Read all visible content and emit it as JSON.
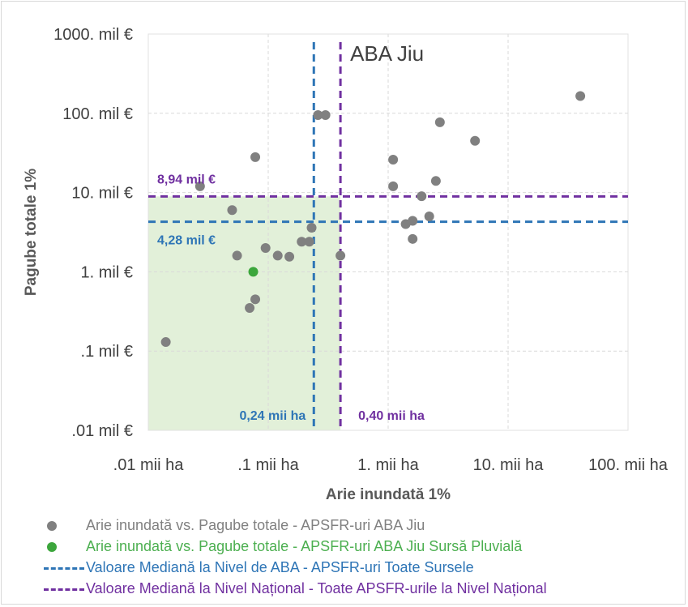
{
  "chart_data": {
    "type": "scatter",
    "title": "ABA Jiu",
    "xlabel": "Arie inundată 1%",
    "ylabel": "Pagube totale 1%",
    "x_scale": "log",
    "y_scale": "log",
    "xlim": [
      0.01,
      100
    ],
    "ylim": [
      0.01,
      1000
    ],
    "grid": true,
    "x_ticks": [
      {
        "value": 0.01,
        "label": ".01 mii ha"
      },
      {
        "value": 0.1,
        "label": ".1 mii ha"
      },
      {
        "value": 1,
        "label": "1. mii ha"
      },
      {
        "value": 10,
        "label": "10. mii ha"
      },
      {
        "value": 100,
        "label": "100. mii ha"
      }
    ],
    "y_ticks": [
      {
        "value": 1000,
        "label": "1000. mil €"
      },
      {
        "value": 100,
        "label": "100. mil €"
      },
      {
        "value": 10,
        "label": "10. mil €"
      },
      {
        "value": 1,
        "label": "1. mil €"
      },
      {
        "value": 0.1,
        "label": ".1 mil €"
      },
      {
        "value": 0.01,
        "label": ".01 mil €"
      }
    ],
    "series": [
      {
        "name": "Arie inundată vs. Pagube totale - APSFR-uri ABA Jiu",
        "color": "#808080",
        "points": [
          [
            0.014,
            0.13
          ],
          [
            0.027,
            12
          ],
          [
            0.05,
            6
          ],
          [
            0.055,
            1.6
          ],
          [
            0.07,
            0.35
          ],
          [
            0.078,
            28
          ],
          [
            0.078,
            0.45
          ],
          [
            0.095,
            2.0
          ],
          [
            0.12,
            1.6
          ],
          [
            0.15,
            1.55
          ],
          [
            0.19,
            2.4
          ],
          [
            0.22,
            2.4
          ],
          [
            0.23,
            3.6
          ],
          [
            0.26,
            95
          ],
          [
            0.3,
            95
          ],
          [
            0.4,
            1.6
          ],
          [
            1.1,
            26
          ],
          [
            1.1,
            12
          ],
          [
            1.4,
            4.0
          ],
          [
            1.6,
            4.4
          ],
          [
            1.6,
            2.6
          ],
          [
            1.9,
            9
          ],
          [
            2.2,
            5
          ],
          [
            2.5,
            14
          ],
          [
            2.7,
            77
          ],
          [
            5.3,
            45
          ],
          [
            40,
            165
          ]
        ]
      },
      {
        "name": "Arie inundată vs. Pagube totale - APSFR-uri ABA Jiu Sursă Pluvială",
        "color": "#3ca63c",
        "points": [
          [
            0.075,
            1.0
          ]
        ]
      }
    ],
    "reference_lines": [
      {
        "name": "Valoare Mediană la Nivel de ABA - APSFR-uri Toate Sursele",
        "color": "#2e75b6",
        "x": 0.24,
        "y": 4.28,
        "x_label": "0,24 mii ha",
        "y_label": "4,28 mil €"
      },
      {
        "name": "Valoare Mediană la Nivel Național - Toate APSFR-urile la Nivel Național",
        "color": "#7030a0",
        "x": 0.4,
        "y": 8.94,
        "x_label": "0,40 mii ha",
        "y_label": "8,94 mil €"
      }
    ],
    "shaded_region": {
      "color": "#e2f0d9",
      "x_range": [
        0.01,
        0.4
      ],
      "y_range": [
        0.01,
        8.94
      ]
    }
  },
  "legend": [
    {
      "marker": "dot",
      "color": "#808080",
      "text_color": "#808080",
      "label": "Arie inundată vs. Pagube totale - APSFR-uri ABA Jiu"
    },
    {
      "marker": "dot",
      "color": "#3ca63c",
      "text_color": "#4caf50",
      "label": "Arie inundată vs. Pagube totale - APSFR-uri ABA Jiu Sursă Pluvială"
    },
    {
      "marker": "dash",
      "color": "#2e75b6",
      "text_color": "#2e75b6",
      "label": "Valoare Mediană la Nivel de ABA - APSFR-uri Toate Sursele"
    },
    {
      "marker": "dash",
      "color": "#7030a0",
      "text_color": "#7030a0",
      "label": "Valoare Mediană la Nivel Național - Toate APSFR-urile la Nivel Național"
    }
  ]
}
